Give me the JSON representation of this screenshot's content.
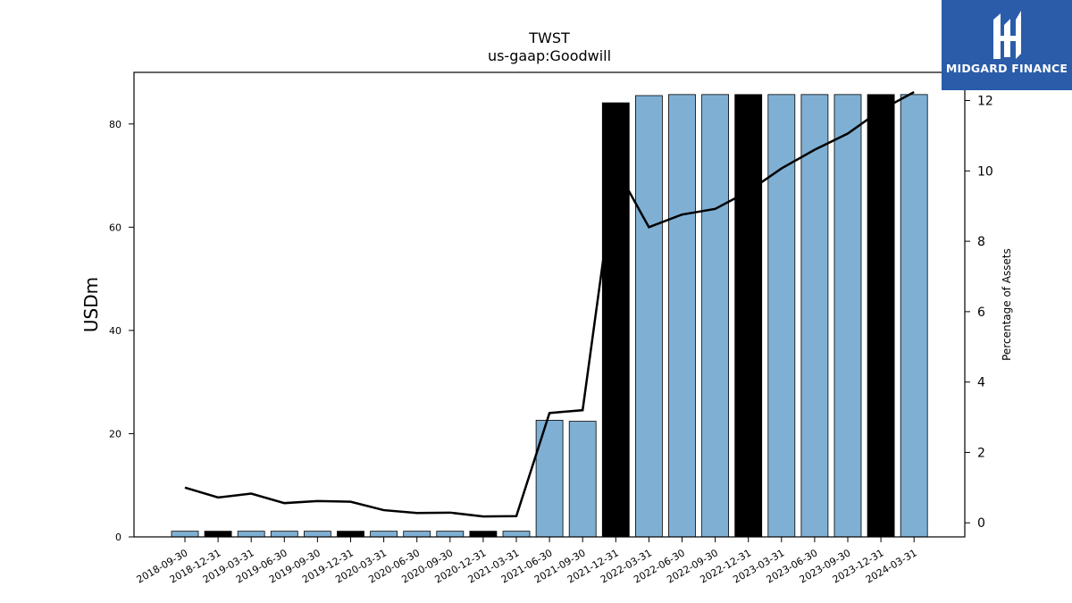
{
  "chart_data": {
    "type": "bar",
    "title": "TWST",
    "subtitle": "us-gaap:Goodwill",
    "ylabel": "USDm",
    "ylabel_right": "Percentage of Assets",
    "ylim": [
      0,
      90
    ],
    "ylim_right": [
      -0.4,
      12.8
    ],
    "yticks": [
      0,
      20,
      40,
      60,
      80
    ],
    "yticks_right": [
      0,
      2,
      4,
      6,
      8,
      10,
      12
    ],
    "categories": [
      "2018-09-30",
      "2018-12-31",
      "2019-03-31",
      "2019-06-30",
      "2019-09-30",
      "2019-12-31",
      "2020-03-31",
      "2020-06-30",
      "2020-09-30",
      "2020-12-31",
      "2021-03-31",
      "2021-06-30",
      "2021-09-30",
      "2021-12-31",
      "2022-03-31",
      "2022-06-30",
      "2022-09-30",
      "2022-12-31",
      "2023-03-31",
      "2023-06-30",
      "2023-09-30",
      "2023-12-31",
      "2024-03-31"
    ],
    "series": [
      {
        "type": "bar",
        "values": [
          1.1,
          1.1,
          1.1,
          1.1,
          1.1,
          1.1,
          1.1,
          1.1,
          1.1,
          1.1,
          1.1,
          22.6,
          22.4,
          84.1,
          85.5,
          85.7,
          85.7,
          85.7,
          85.7,
          85.7,
          85.7,
          85.7,
          85.7
        ],
        "highlight": [
          false,
          true,
          false,
          false,
          false,
          true,
          false,
          false,
          false,
          true,
          false,
          false,
          false,
          true,
          false,
          false,
          false,
          true,
          false,
          false,
          false,
          true,
          false
        ]
      },
      {
        "type": "line",
        "axis": "right",
        "values": [
          1.0,
          0.72,
          0.83,
          0.56,
          0.62,
          0.6,
          0.36,
          0.28,
          0.29,
          0.18,
          0.19,
          3.12,
          3.2,
          10.1,
          8.4,
          8.76,
          8.92,
          9.42,
          10.07,
          10.6,
          11.06,
          11.73,
          12.24
        ]
      }
    ],
    "colors": {
      "bar": "#7fb0d4",
      "bar_highlight": "#000000",
      "line": "#000000"
    },
    "grid": false
  },
  "logo": {
    "text": "MIDGARD FINANCE",
    "background": "#2a5caa"
  }
}
